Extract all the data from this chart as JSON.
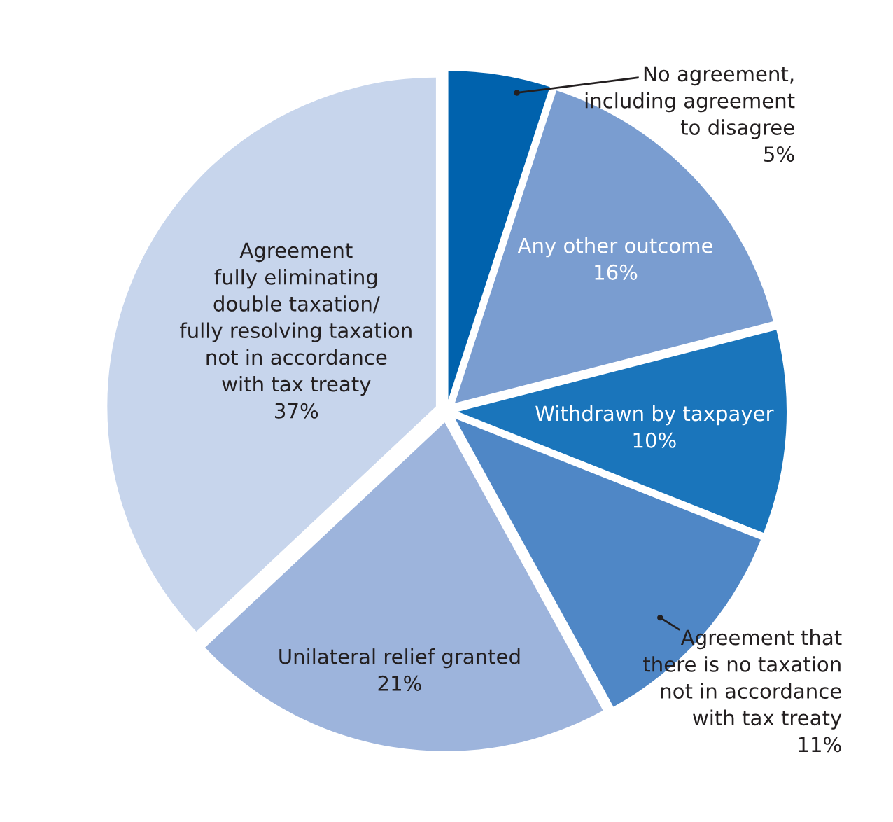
{
  "chart_data": {
    "type": "pie",
    "categories": [
      "No agreement,\nincluding agreement\nto disagree",
      "Any other outcome",
      "Withdrawn by taxpayer",
      "Agreement that\nthere is no taxation\nnot in accordance\nwith tax treaty",
      "Unilateral relief granted",
      "Agreement\nfully eliminating\ndouble taxation/\nfully resolving taxation\nnot in accordance\nwith tax treaty"
    ],
    "values": [
      5,
      16,
      10,
      11,
      21,
      37
    ],
    "colors": [
      "#0062ad",
      "#7a9dd0",
      "#1a75bb",
      "#4f87c6",
      "#9db4dc",
      "#c7d5ec"
    ],
    "value_labels": [
      "5%",
      "16%",
      "10%",
      "11%",
      "21%",
      "37%"
    ],
    "legend": false
  }
}
